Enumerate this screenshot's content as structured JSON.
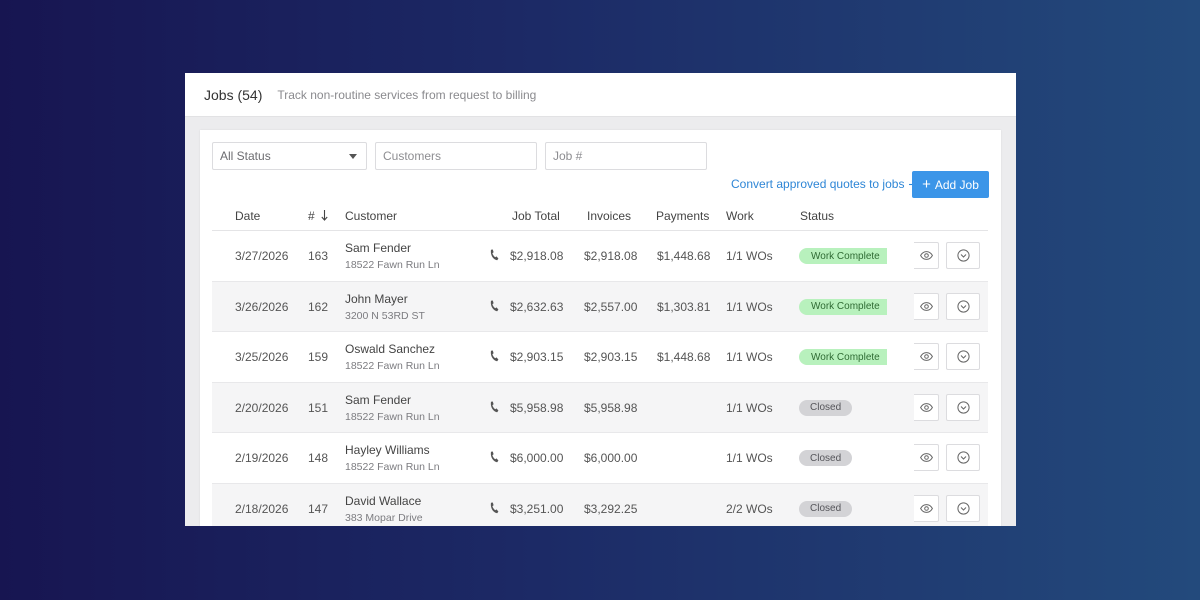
{
  "header": {
    "title": "Jobs (54)",
    "subtitle": "Track non-routine services from request to billing"
  },
  "filters": {
    "status_select": "All Status",
    "customers_placeholder": "Customers",
    "job_placeholder": "Job #"
  },
  "actions": {
    "convert_link": "Convert approved quotes to jobs",
    "add_job": "Add Job"
  },
  "columns": {
    "date": "Date",
    "number": "#",
    "customer": "Customer",
    "job_total": "Job Total",
    "invoices": "Invoices",
    "payments": "Payments",
    "work": "Work",
    "status": "Status"
  },
  "rows": [
    {
      "date": "3/27/2026",
      "number": "163",
      "name": "Sam Fender",
      "address": "18522 Fawn Run Ln",
      "job_total": "$2,918.08",
      "invoices": "$2,918.08",
      "payments": "$1,448.68",
      "work": "1/1 WOs",
      "status": "Work Complete",
      "status_type": "complete"
    },
    {
      "date": "3/26/2026",
      "number": "162",
      "name": "John Mayer",
      "address": "3200 N 53RD ST",
      "job_total": "$2,632.63",
      "invoices": "$2,557.00",
      "payments": "$1,303.81",
      "work": "1/1 WOs",
      "status": "Work Complete",
      "status_type": "complete"
    },
    {
      "date": "3/25/2026",
      "number": "159",
      "name": "Oswald Sanchez",
      "address": "18522 Fawn Run Ln",
      "job_total": "$2,903.15",
      "invoices": "$2,903.15",
      "payments": "$1,448.68",
      "work": "1/1 WOs",
      "status": "Work Complete",
      "status_type": "complete"
    },
    {
      "date": "2/20/2026",
      "number": "151",
      "name": "Sam Fender",
      "address": "18522 Fawn Run Ln",
      "job_total": "$5,958.98",
      "invoices": "$5,958.98",
      "payments": "",
      "work": "1/1 WOs",
      "status": "Closed",
      "status_type": "closed"
    },
    {
      "date": "2/19/2026",
      "number": "148",
      "name": "Hayley Williams",
      "address": "18522 Fawn Run Ln",
      "job_total": "$6,000.00",
      "invoices": "$6,000.00",
      "payments": "",
      "work": "1/1 WOs",
      "status": "Closed",
      "status_type": "closed"
    },
    {
      "date": "2/18/2026",
      "number": "147",
      "name": "David Wallace",
      "address": "383 Mopar Drive",
      "job_total": "$3,251.00",
      "invoices": "$3,292.25",
      "payments": "",
      "work": "2/2 WOs",
      "status": "Closed",
      "status_type": "closed"
    }
  ],
  "icons": {
    "phone": "phone-icon",
    "view": "eye-icon",
    "more": "chevron-down-circle-icon",
    "search": "search-icon",
    "sort": "arrow-down-icon"
  },
  "colors": {
    "accent": "#3b95e8",
    "link": "#2e86d6",
    "complete_badge": "#b8f1bd",
    "closed_badge": "#d3d3d6"
  }
}
